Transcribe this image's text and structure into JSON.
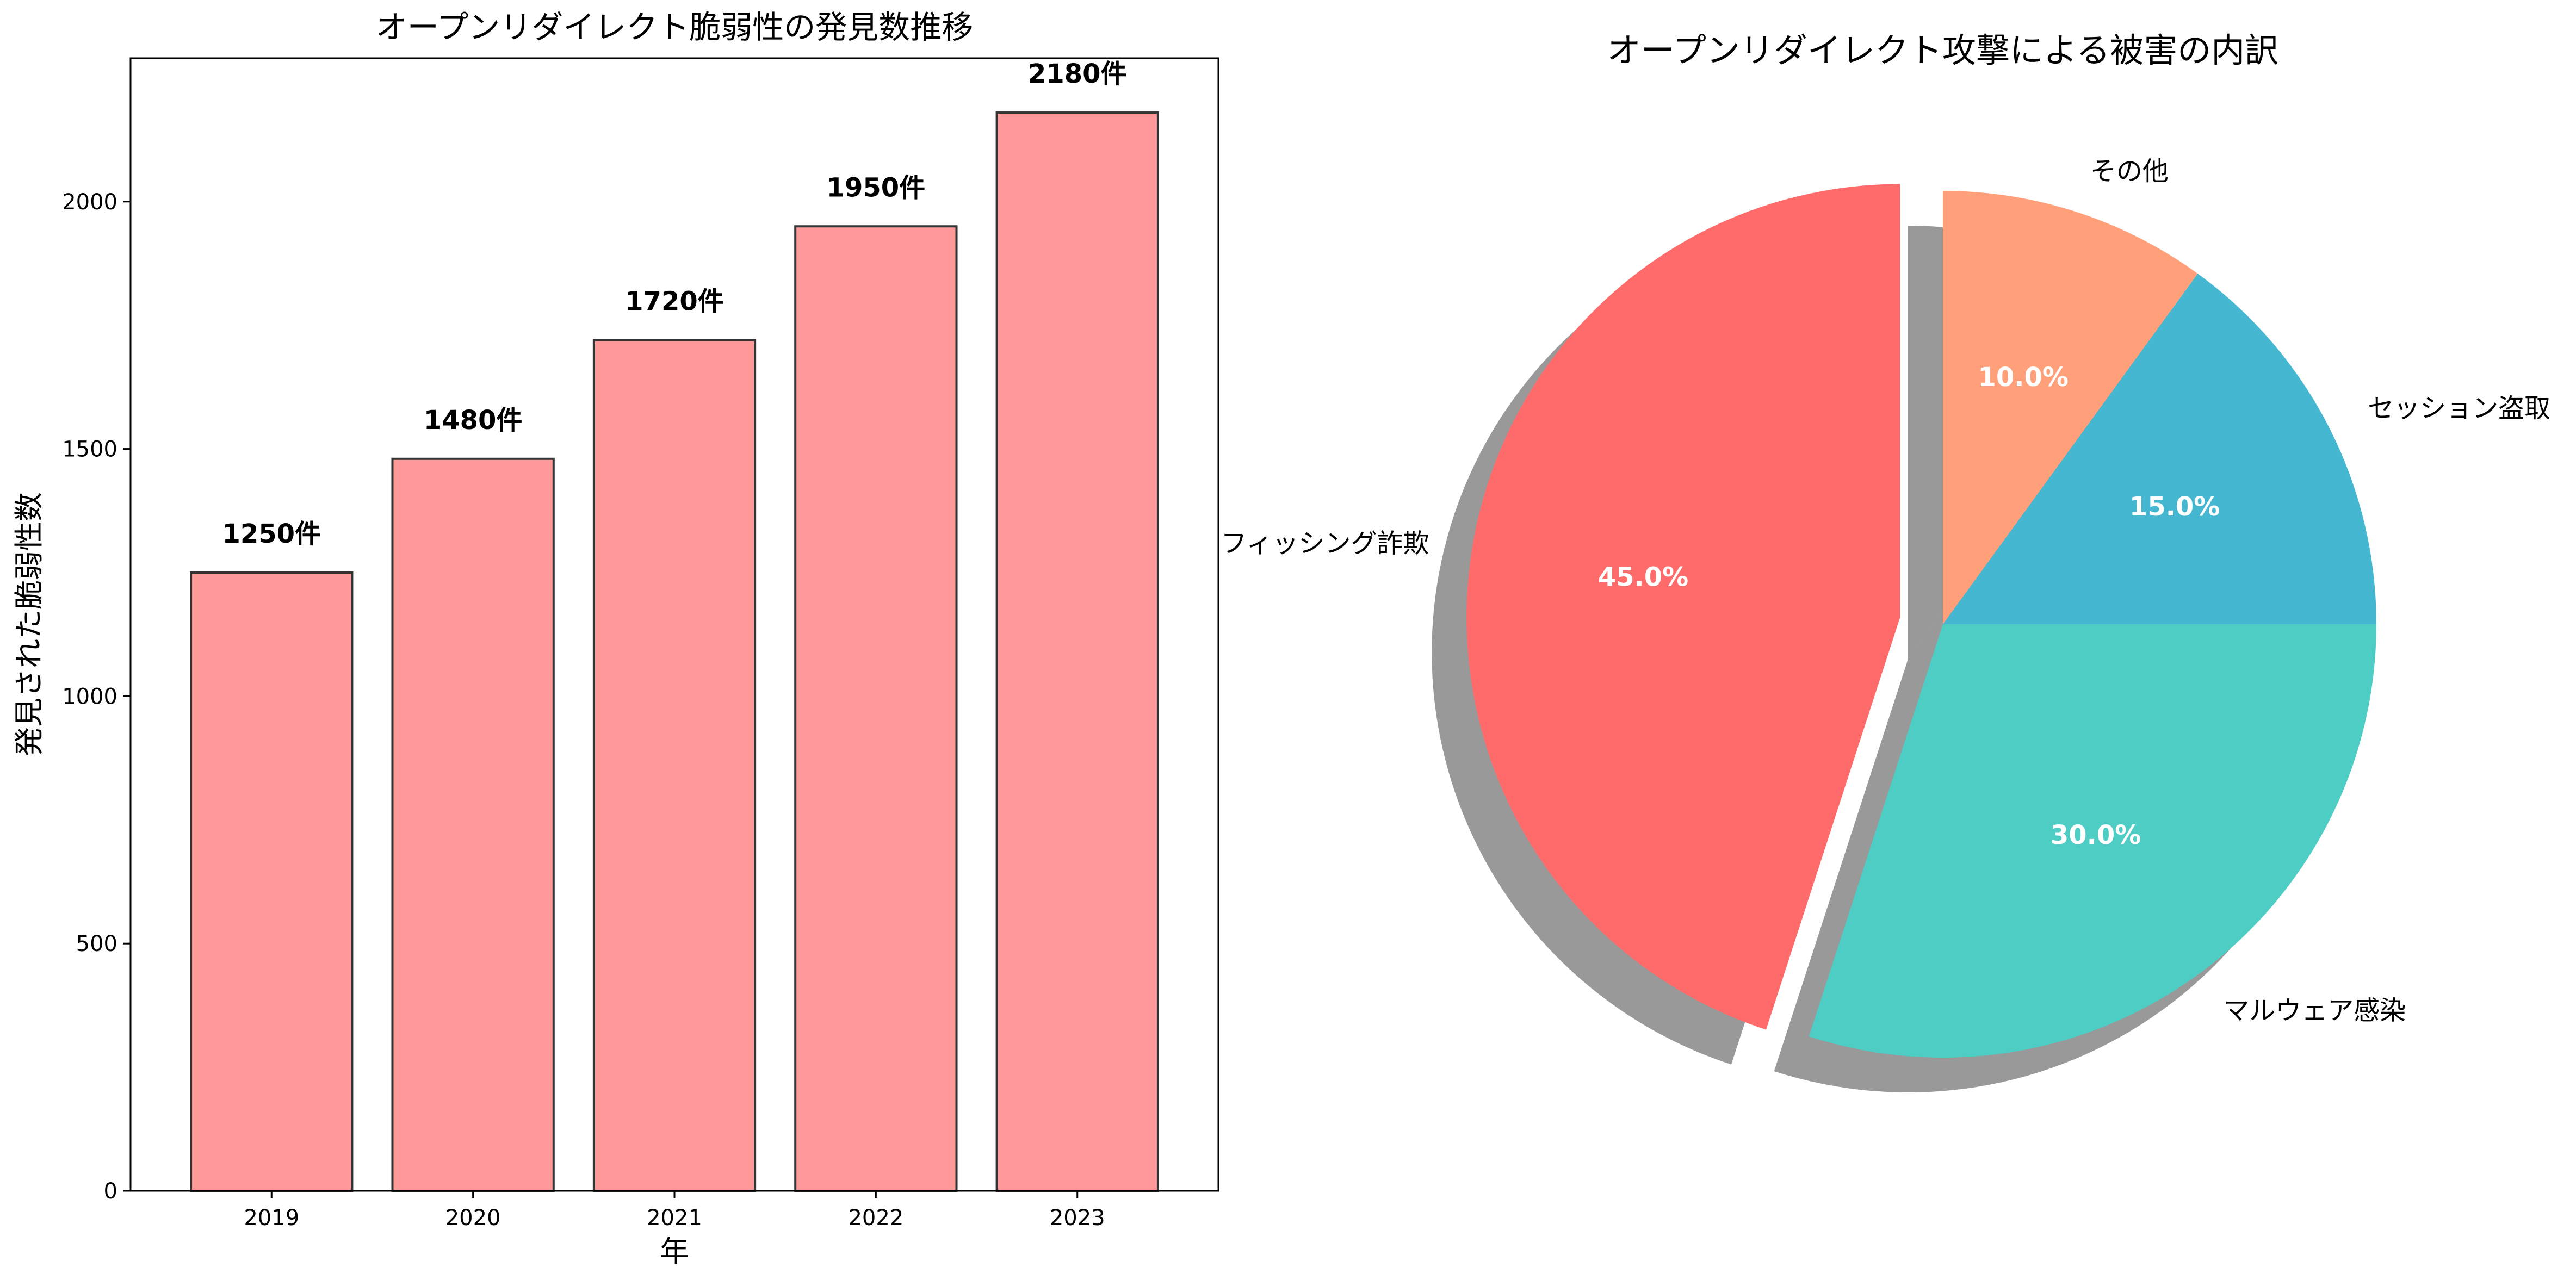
{
  "chart_data": [
    {
      "type": "bar",
      "title": "オープンリダイレクト脆弱性の発見数推移",
      "xlabel": "年",
      "ylabel": "発見された脆弱性数",
      "categories": [
        "2019",
        "2020",
        "2021",
        "2022",
        "2023"
      ],
      "values": [
        1250,
        1480,
        1720,
        1950,
        2180
      ],
      "data_labels": [
        "1250件",
        "1480件",
        "1720件",
        "1950件",
        "2180件"
      ],
      "ylim": [
        0,
        2290
      ],
      "yticks": [
        0,
        500,
        1000,
        1500,
        2000
      ],
      "grid": false,
      "bar_color": "#ff9999",
      "edge_color": "#333333"
    },
    {
      "type": "pie",
      "title": "オープンリダイレクト攻撃による被害の内訳",
      "start_angle_deg": 90,
      "counterclockwise": true,
      "shadow": true,
      "exploded_slice": "フィッシング詐欺",
      "slices": [
        {
          "label": "フィッシング詐欺",
          "value": 45.0,
          "pct_label": "45.0%",
          "color": "#ff6b6b"
        },
        {
          "label": "マルウェア感染",
          "value": 30.0,
          "pct_label": "30.0%",
          "color": "#4ecdc4"
        },
        {
          "label": "セッション盗取",
          "value": 15.0,
          "pct_label": "15.0%",
          "color": "#45b7d1"
        },
        {
          "label": "その他",
          "value": 10.0,
          "pct_label": "10.0%",
          "color": "#ffa07a"
        }
      ]
    }
  ]
}
